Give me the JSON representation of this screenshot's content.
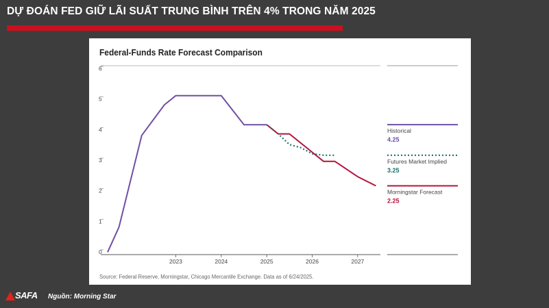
{
  "header": {
    "title": "DỰ ĐOÁN FED GIỮ LÃI SUẤT TRUNG BÌNH TRÊN 4% TRONG NĂM 2025"
  },
  "footer": {
    "logo_text": "SAFA",
    "source": "Nguồn: Morning Star"
  },
  "colors": {
    "historical": "#6f4fa3",
    "futures": "#1d6e6a",
    "morningstar": "#b5123b",
    "accent_bar": "#c8101e"
  },
  "chart_data": {
    "type": "line",
    "title": "Federal-Funds Rate Forecast Comparison",
    "source_note": "Source: Federal Reserve, Morningstar, Chicago Mercantile Exchange. Data as of 6/24/2025.",
    "xlabel": "",
    "ylabel": "",
    "x_ticks": [
      "2023",
      "2024",
      "2025",
      "2026",
      "2027"
    ],
    "y_ticks": [
      "0",
      "1",
      "2",
      "3",
      "4",
      "5",
      "6"
    ],
    "xlim": [
      2022.0,
      2028.0
    ],
    "ylim": [
      0,
      6
    ],
    "grid": false,
    "legend_placement": "right",
    "series": [
      {
        "name": "Historical",
        "value_label": "4.25",
        "color_key": "historical",
        "style": "solid",
        "points": [
          [
            2022.0,
            0.08
          ],
          [
            2022.25,
            0.9
          ],
          [
            2022.5,
            2.4
          ],
          [
            2022.75,
            3.9
          ],
          [
            2023.0,
            4.4
          ],
          [
            2023.25,
            4.9
          ],
          [
            2023.5,
            5.2
          ],
          [
            2023.75,
            5.2
          ],
          [
            2024.0,
            5.2
          ],
          [
            2024.5,
            5.2
          ],
          [
            2025.0,
            4.25
          ],
          [
            2025.5,
            4.25
          ]
        ]
      },
      {
        "name": "Futures Market Implied",
        "value_label": "3.25",
        "color_key": "futures",
        "style": "dotted",
        "points": [
          [
            2025.5,
            4.25
          ],
          [
            2025.75,
            3.95
          ],
          [
            2026.0,
            3.6
          ],
          [
            2026.25,
            3.5
          ],
          [
            2026.5,
            3.3
          ],
          [
            2026.75,
            3.25
          ],
          [
            2027.0,
            3.25
          ]
        ]
      },
      {
        "name": "Morningstar Forecast",
        "value_label": "2.25",
        "color_key": "morningstar",
        "style": "solid",
        "points": [
          [
            2025.5,
            4.25
          ],
          [
            2025.75,
            3.95
          ],
          [
            2026.0,
            3.95
          ],
          [
            2026.5,
            3.35
          ],
          [
            2026.75,
            3.05
          ],
          [
            2027.0,
            3.05
          ],
          [
            2027.5,
            2.55
          ],
          [
            2027.9,
            2.25
          ]
        ]
      }
    ]
  }
}
